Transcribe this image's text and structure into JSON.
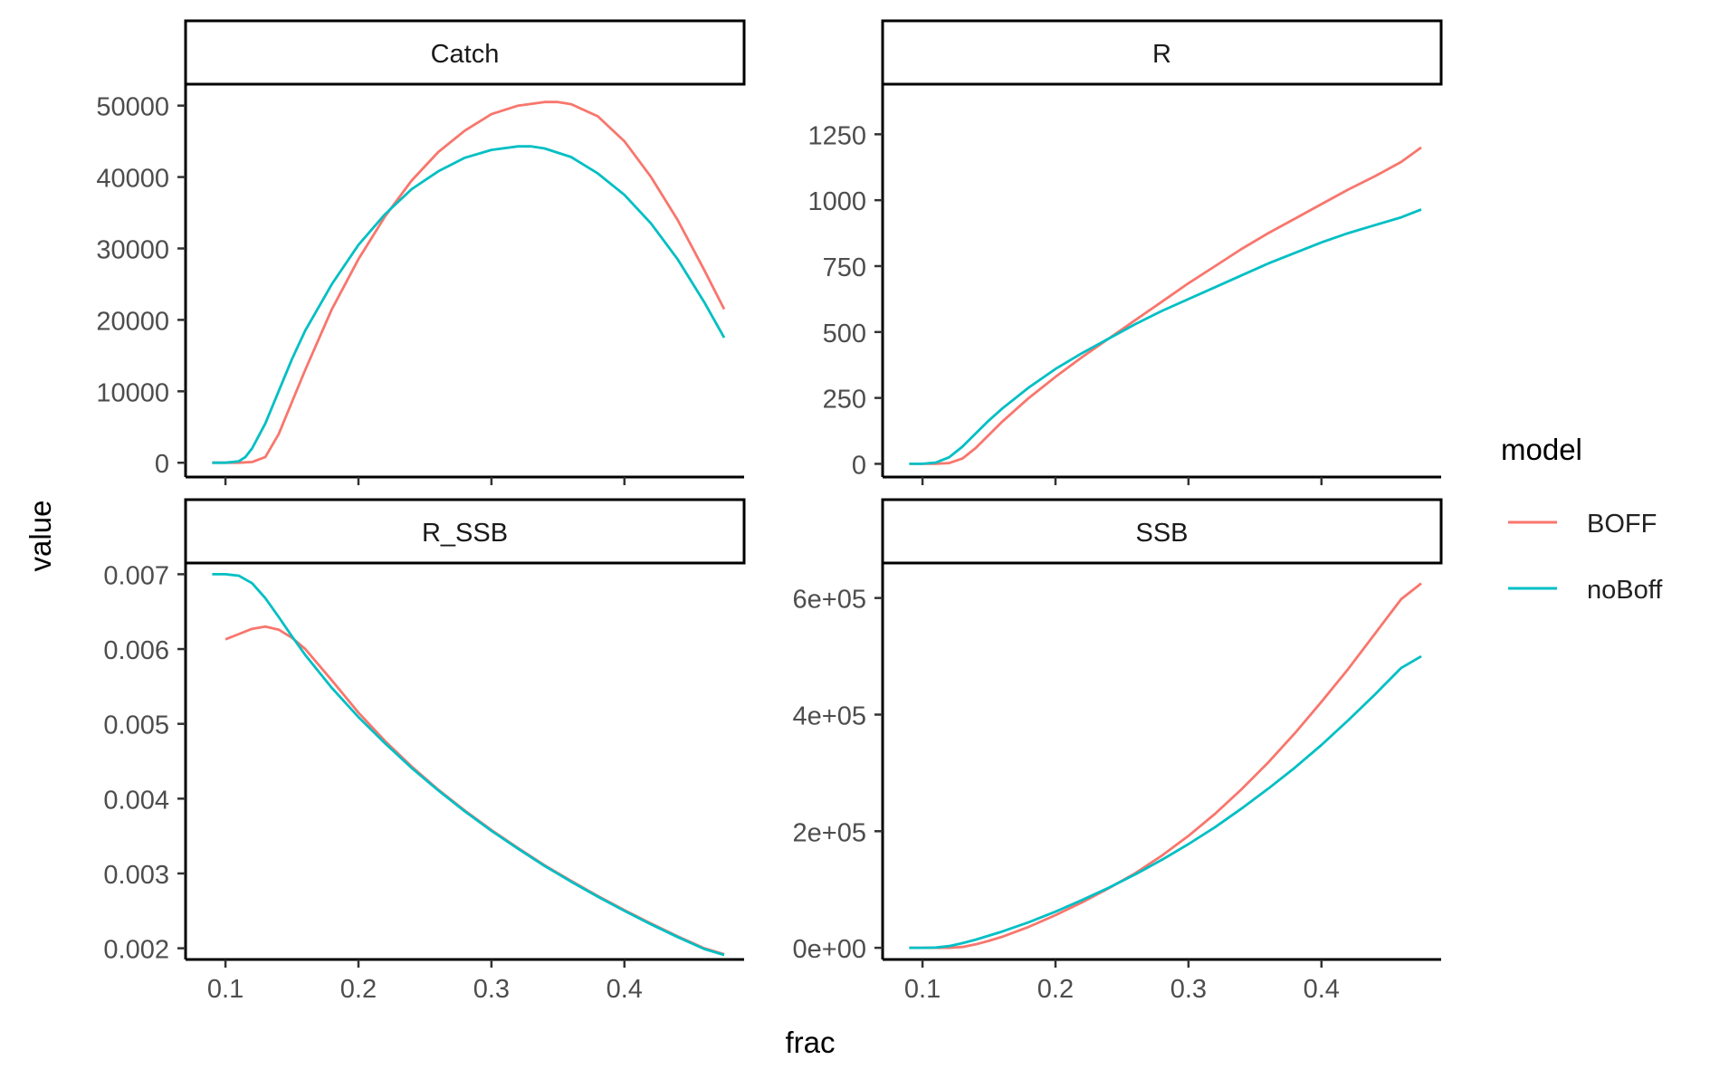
{
  "chart_data": {
    "type": "line",
    "facet_layout": "2x2 grid, free y scales, shared x scale",
    "xlabel": "frac",
    "ylabel": "value",
    "grid": false,
    "legend": {
      "title": "model",
      "placement": "right",
      "entries": [
        {
          "name": "BOFF",
          "color": "#F8766D"
        },
        {
          "name": "noBoff",
          "color": "#00BFC4"
        }
      ]
    },
    "x": {
      "lim": [
        0.07,
        0.49
      ],
      "ticks": [
        0.1,
        0.2,
        0.3,
        0.4
      ],
      "tick_labels": [
        "0.1",
        "0.2",
        "0.3",
        "0.4"
      ]
    },
    "panels": [
      {
        "title": "Catch",
        "ylim": [
          -2000,
          53000
        ],
        "yticks": [
          0,
          10000,
          20000,
          30000,
          40000,
          50000
        ],
        "ytick_labels": [
          "0",
          "10000",
          "20000",
          "30000",
          "40000",
          "50000"
        ],
        "series": [
          {
            "name": "BOFF",
            "color": "#F8766D",
            "x": [
              0.09,
              0.1,
              0.11,
              0.12,
              0.13,
              0.14,
              0.15,
              0.16,
              0.18,
              0.2,
              0.22,
              0.24,
              0.26,
              0.28,
              0.3,
              0.32,
              0.34,
              0.35,
              0.36,
              0.38,
              0.4,
              0.42,
              0.44,
              0.46,
              0.475
            ],
            "y": [
              0,
              0,
              0,
              100,
              800,
              4000,
              8500,
              13000,
              21500,
              28500,
              34500,
              39500,
              43500,
              46500,
              48800,
              50000,
              50500,
              50500,
              50200,
              48500,
              45000,
              40000,
              34000,
              27000,
              21500
            ]
          },
          {
            "name": "noBoff",
            "color": "#00BFC4",
            "x": [
              0.09,
              0.1,
              0.11,
              0.115,
              0.12,
              0.13,
              0.14,
              0.15,
              0.16,
              0.18,
              0.2,
              0.22,
              0.24,
              0.26,
              0.28,
              0.3,
              0.32,
              0.33,
              0.34,
              0.36,
              0.38,
              0.4,
              0.42,
              0.44,
              0.46,
              0.475
            ],
            "y": [
              0,
              0,
              200,
              800,
              2000,
              5500,
              10000,
              14500,
              18500,
              25000,
              30500,
              34800,
              38300,
              40800,
              42700,
              43800,
              44300,
              44300,
              44000,
              42800,
              40500,
              37500,
              33500,
              28500,
              22500,
              17500
            ]
          }
        ]
      },
      {
        "title": "R",
        "ylim": [
          -50,
          1440
        ],
        "yticks": [
          0,
          250,
          500,
          750,
          1000,
          1250
        ],
        "ytick_labels": [
          "0",
          "250",
          "500",
          "750",
          "1000",
          "1250"
        ],
        "series": [
          {
            "name": "BOFF",
            "color": "#F8766D",
            "x": [
              0.09,
              0.1,
              0.11,
              0.12,
              0.13,
              0.14,
              0.15,
              0.16,
              0.18,
              0.2,
              0.22,
              0.24,
              0.26,
              0.28,
              0.3,
              0.32,
              0.34,
              0.36,
              0.38,
              0.4,
              0.42,
              0.44,
              0.46,
              0.475
            ],
            "y": [
              0,
              0,
              0,
              3,
              20,
              60,
              110,
              160,
              250,
              330,
              405,
              475,
              545,
              615,
              685,
              750,
              815,
              875,
              930,
              985,
              1040,
              1090,
              1145,
              1200
            ]
          },
          {
            "name": "noBoff",
            "color": "#00BFC4",
            "x": [
              0.09,
              0.1,
              0.11,
              0.12,
              0.13,
              0.14,
              0.15,
              0.16,
              0.18,
              0.2,
              0.22,
              0.24,
              0.26,
              0.28,
              0.3,
              0.32,
              0.34,
              0.36,
              0.38,
              0.4,
              0.42,
              0.44,
              0.46,
              0.475
            ],
            "y": [
              0,
              0,
              5,
              25,
              65,
              115,
              165,
              210,
              290,
              360,
              420,
              475,
              530,
              580,
              625,
              670,
              715,
              760,
              800,
              840,
              875,
              905,
              935,
              965
            ]
          }
        ]
      },
      {
        "title": "R_SSB",
        "ylim": [
          0.00185,
          0.00715
        ],
        "yticks": [
          0.002,
          0.003,
          0.004,
          0.005,
          0.006,
          0.007
        ],
        "ytick_labels": [
          "0.002",
          "0.003",
          "0.004",
          "0.005",
          "0.006",
          "0.007"
        ],
        "series": [
          {
            "name": "BOFF",
            "color": "#F8766D",
            "x": [
              0.1,
              0.11,
              0.12,
              0.13,
              0.14,
              0.15,
              0.16,
              0.18,
              0.2,
              0.22,
              0.24,
              0.26,
              0.28,
              0.3,
              0.32,
              0.34,
              0.36,
              0.38,
              0.4,
              0.42,
              0.44,
              0.46,
              0.475
            ],
            "y": [
              0.00613,
              0.0062,
              0.00627,
              0.0063,
              0.00626,
              0.00615,
              0.006,
              0.00558,
              0.00515,
              0.00477,
              0.00443,
              0.00412,
              0.00384,
              0.00358,
              0.00334,
              0.00311,
              0.0029,
              0.0027,
              0.00251,
              0.00233,
              0.00216,
              0.002,
              0.00192
            ]
          },
          {
            "name": "noBoff",
            "color": "#00BFC4",
            "x": [
              0.09,
              0.1,
              0.11,
              0.12,
              0.13,
              0.14,
              0.15,
              0.16,
              0.18,
              0.2,
              0.22,
              0.24,
              0.26,
              0.28,
              0.3,
              0.32,
              0.34,
              0.36,
              0.38,
              0.4,
              0.42,
              0.44,
              0.46,
              0.475
            ],
            "y": [
              0.007,
              0.007,
              0.00698,
              0.00688,
              0.00668,
              0.00643,
              0.00617,
              0.00592,
              0.00548,
              0.00509,
              0.00474,
              0.00441,
              0.00411,
              0.00383,
              0.00357,
              0.00333,
              0.0031,
              0.00289,
              0.00269,
              0.0025,
              0.00232,
              0.00215,
              0.00199,
              0.00191
            ]
          }
        ]
      },
      {
        "title": "SSB",
        "ylim": [
          -20000,
          660000
        ],
        "yticks": [
          0,
          200000,
          400000,
          600000
        ],
        "ytick_labels": [
          "0e+00",
          "2e+05",
          "4e+05",
          "6e+05"
        ],
        "series": [
          {
            "name": "BOFF",
            "color": "#F8766D",
            "x": [
              0.09,
              0.1,
              0.11,
              0.12,
              0.13,
              0.14,
              0.15,
              0.16,
              0.18,
              0.2,
              0.22,
              0.24,
              0.26,
              0.28,
              0.3,
              0.32,
              0.34,
              0.36,
              0.38,
              0.4,
              0.42,
              0.44,
              0.46,
              0.475
            ],
            "y": [
              0,
              0,
              0,
              0,
              1500,
              6000,
              12000,
              19000,
              36000,
              56000,
              78000,
              102000,
              128000,
              158000,
              192000,
              230000,
              272000,
              318000,
              368000,
              422000,
              478000,
              538000,
              598000,
              625000
            ]
          },
          {
            "name": "noBoff",
            "color": "#00BFC4",
            "x": [
              0.09,
              0.1,
              0.11,
              0.12,
              0.13,
              0.14,
              0.15,
              0.16,
              0.18,
              0.2,
              0.22,
              0.24,
              0.26,
              0.28,
              0.3,
              0.32,
              0.34,
              0.36,
              0.38,
              0.4,
              0.42,
              0.44,
              0.46,
              0.475
            ],
            "y": [
              0,
              0,
              500,
              3000,
              8000,
              14000,
              21000,
              28000,
              44000,
              62000,
              82000,
              103000,
              126000,
              151000,
              178000,
              207000,
              239000,
              273000,
              309000,
              348000,
              390000,
              434000,
              480000,
              500000
            ]
          }
        ]
      }
    ]
  }
}
